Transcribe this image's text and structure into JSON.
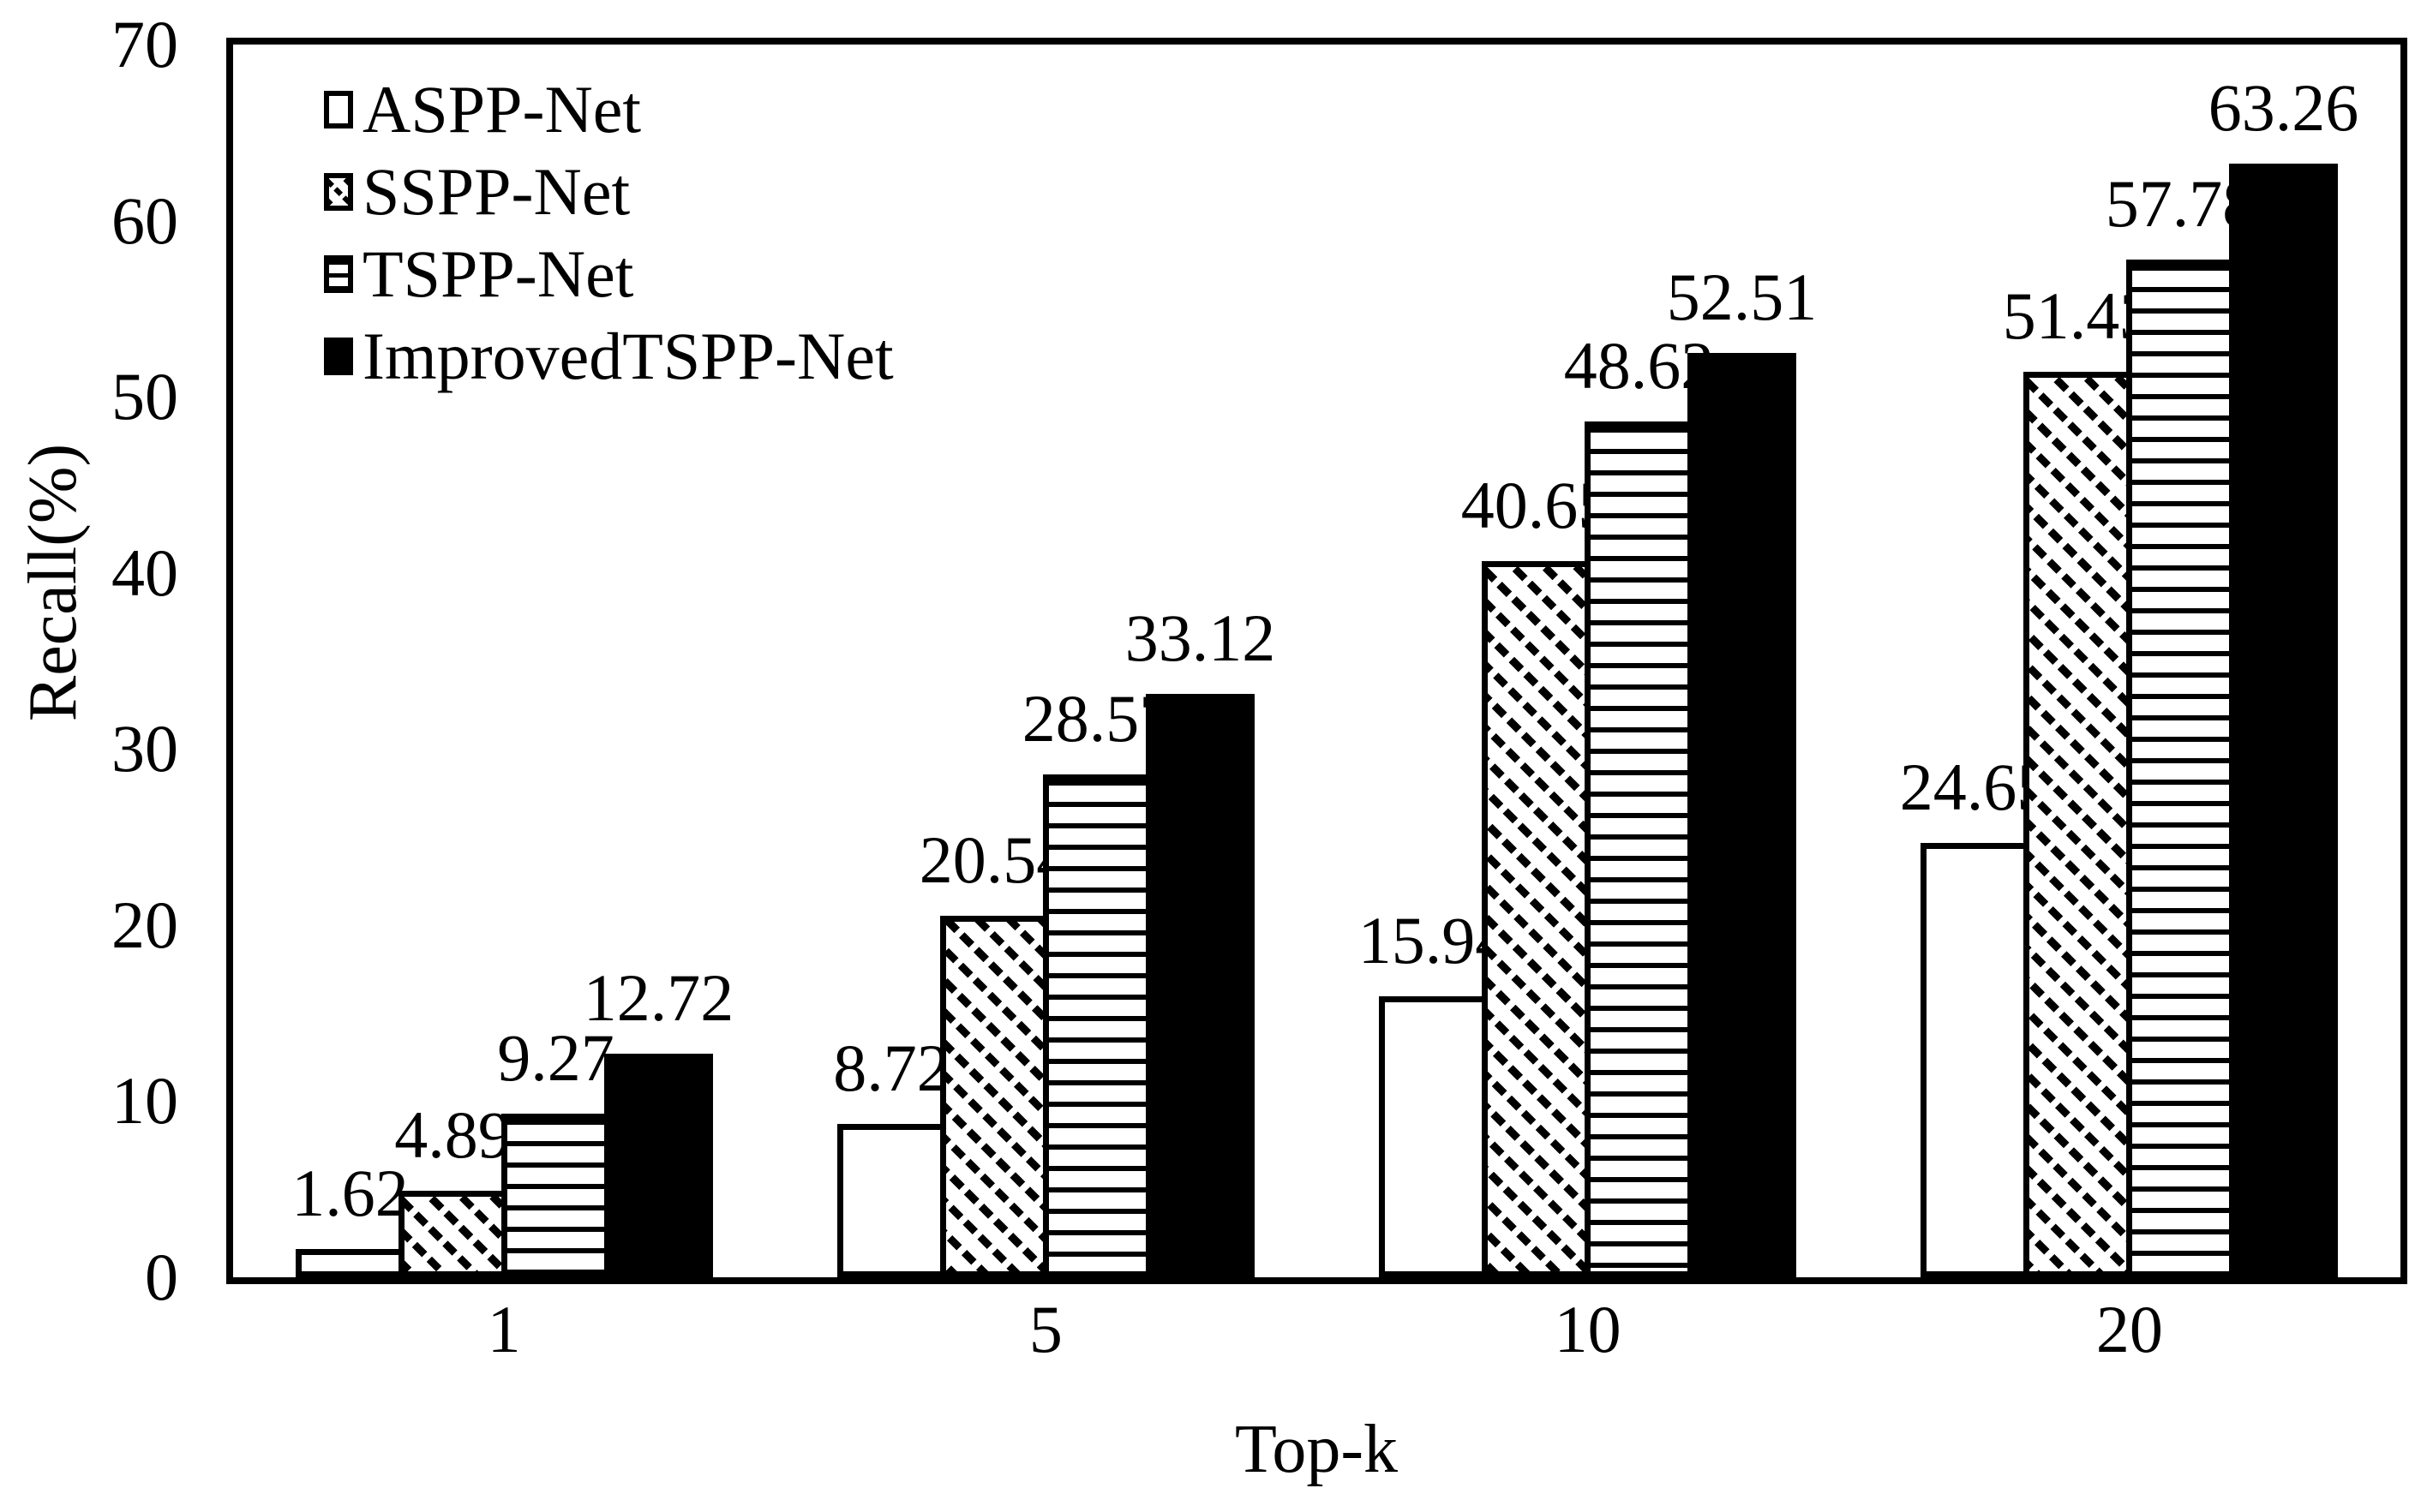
{
  "chart_data": {
    "type": "bar",
    "title": "",
    "xlabel": "Top-k",
    "ylabel": "Recall(%)",
    "categories": [
      "1",
      "5",
      "10",
      "20"
    ],
    "series": [
      {
        "name": "ASPP-Net",
        "pattern": "plain",
        "values": [
          1.62,
          8.72,
          15.94,
          24.65
        ]
      },
      {
        "name": "SSPP-Net",
        "pattern": "diagonal-hatch",
        "values": [
          4.89,
          20.54,
          40.65,
          51.43
        ]
      },
      {
        "name": "TSPP-Net",
        "pattern": "horizontal-lines",
        "values": [
          9.27,
          28.57,
          48.62,
          57.78
        ]
      },
      {
        "name": "ImprovedTSPP-Net",
        "pattern": "solid",
        "values": [
          12.72,
          33.12,
          52.51,
          63.26
        ]
      }
    ],
    "value_labels": [
      "1.62",
      "4.89",
      "9.27",
      "12.72",
      "8.72",
      "20.54",
      "28.57",
      "33.12",
      "15.94",
      "40.65",
      "48.62",
      "52.51",
      "24.65",
      "51.43",
      "57.78",
      "63.26"
    ],
    "ylim": [
      0,
      70
    ],
    "yticks": [
      0,
      10,
      20,
      30,
      40,
      50,
      60,
      70
    ],
    "grid": false,
    "legend_position": "top-left-inside",
    "bar_value_labels": true,
    "colors": {
      "foreground": "#000000",
      "background": "#ffffff"
    }
  }
}
